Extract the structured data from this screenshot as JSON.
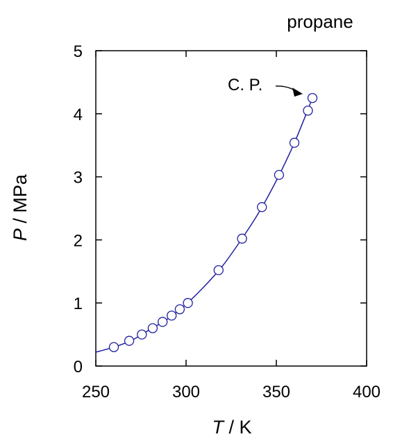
{
  "chart_data": {
    "type": "scatter",
    "title": "propane",
    "xlabel": {
      "symbol": "T",
      "unit": " / K"
    },
    "ylabel": {
      "symbol": "P",
      "unit": " / MPa"
    },
    "xlim": [
      250,
      400
    ],
    "ylim": [
      0,
      5
    ],
    "xticks": [
      250,
      300,
      350,
      400
    ],
    "yticks": [
      0,
      1,
      2,
      3,
      4,
      5
    ],
    "grid": false,
    "series": [
      {
        "marker": "open-circle",
        "color": "#1f1f9f",
        "x": [
          260,
          268.5,
          275.5,
          281.5,
          287,
          292,
          296.5,
          301,
          318,
          331,
          342,
          351.5,
          360,
          367.5,
          370
        ],
        "y": [
          0.3,
          0.4,
          0.5,
          0.6,
          0.7,
          0.8,
          0.9,
          1.0,
          1.52,
          2.02,
          2.52,
          3.03,
          3.54,
          4.05,
          4.25
        ]
      }
    ],
    "fit_curve": {
      "color": "#1f1f9f",
      "x": [
        250,
        260,
        270,
        280,
        290,
        300,
        310,
        320,
        330,
        340,
        350,
        360,
        370
      ],
      "y": [
        0.22,
        0.3,
        0.41,
        0.58,
        0.75,
        0.98,
        1.26,
        1.58,
        1.98,
        2.42,
        2.94,
        3.54,
        4.25
      ]
    },
    "annotations": [
      {
        "text": "C. P.",
        "points_to": [
          370,
          4.25
        ]
      }
    ]
  }
}
